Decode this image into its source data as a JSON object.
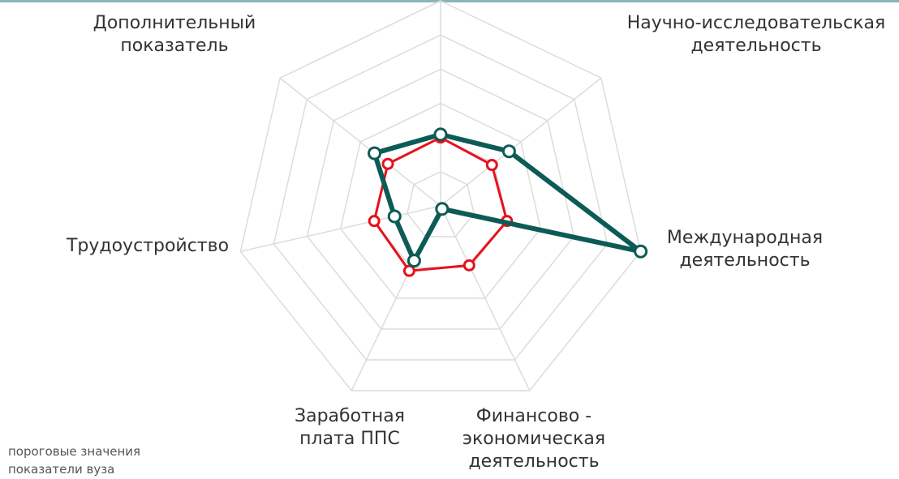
{
  "chart_data": {
    "type": "radar",
    "categories": [
      null,
      "Научно-исследовательская\nдеятельность",
      "Международная\nдеятельность",
      "Финансово -\nэкономическая\nдеятельность",
      "Заработная\nплата ППС",
      "Трудоустройство",
      "Дополнительный\nпоказатель"
    ],
    "rlim": [
      0,
      6
    ],
    "rticks": [
      1,
      2,
      3,
      4,
      5,
      6
    ],
    "grid": true,
    "series": [
      {
        "name": "пороговые значения",
        "color": "#e5121c",
        "values": [
          2.0,
          1.92,
          1.99,
          1.93,
          2.11,
          1.99,
          1.97
        ]
      },
      {
        "name": "показатели вуза",
        "color": "#0d5b56",
        "values": [
          2.09,
          2.56,
          6.0,
          0.1,
          1.78,
          1.38,
          2.47
        ]
      }
    ],
    "legend": "bottom-left"
  }
}
